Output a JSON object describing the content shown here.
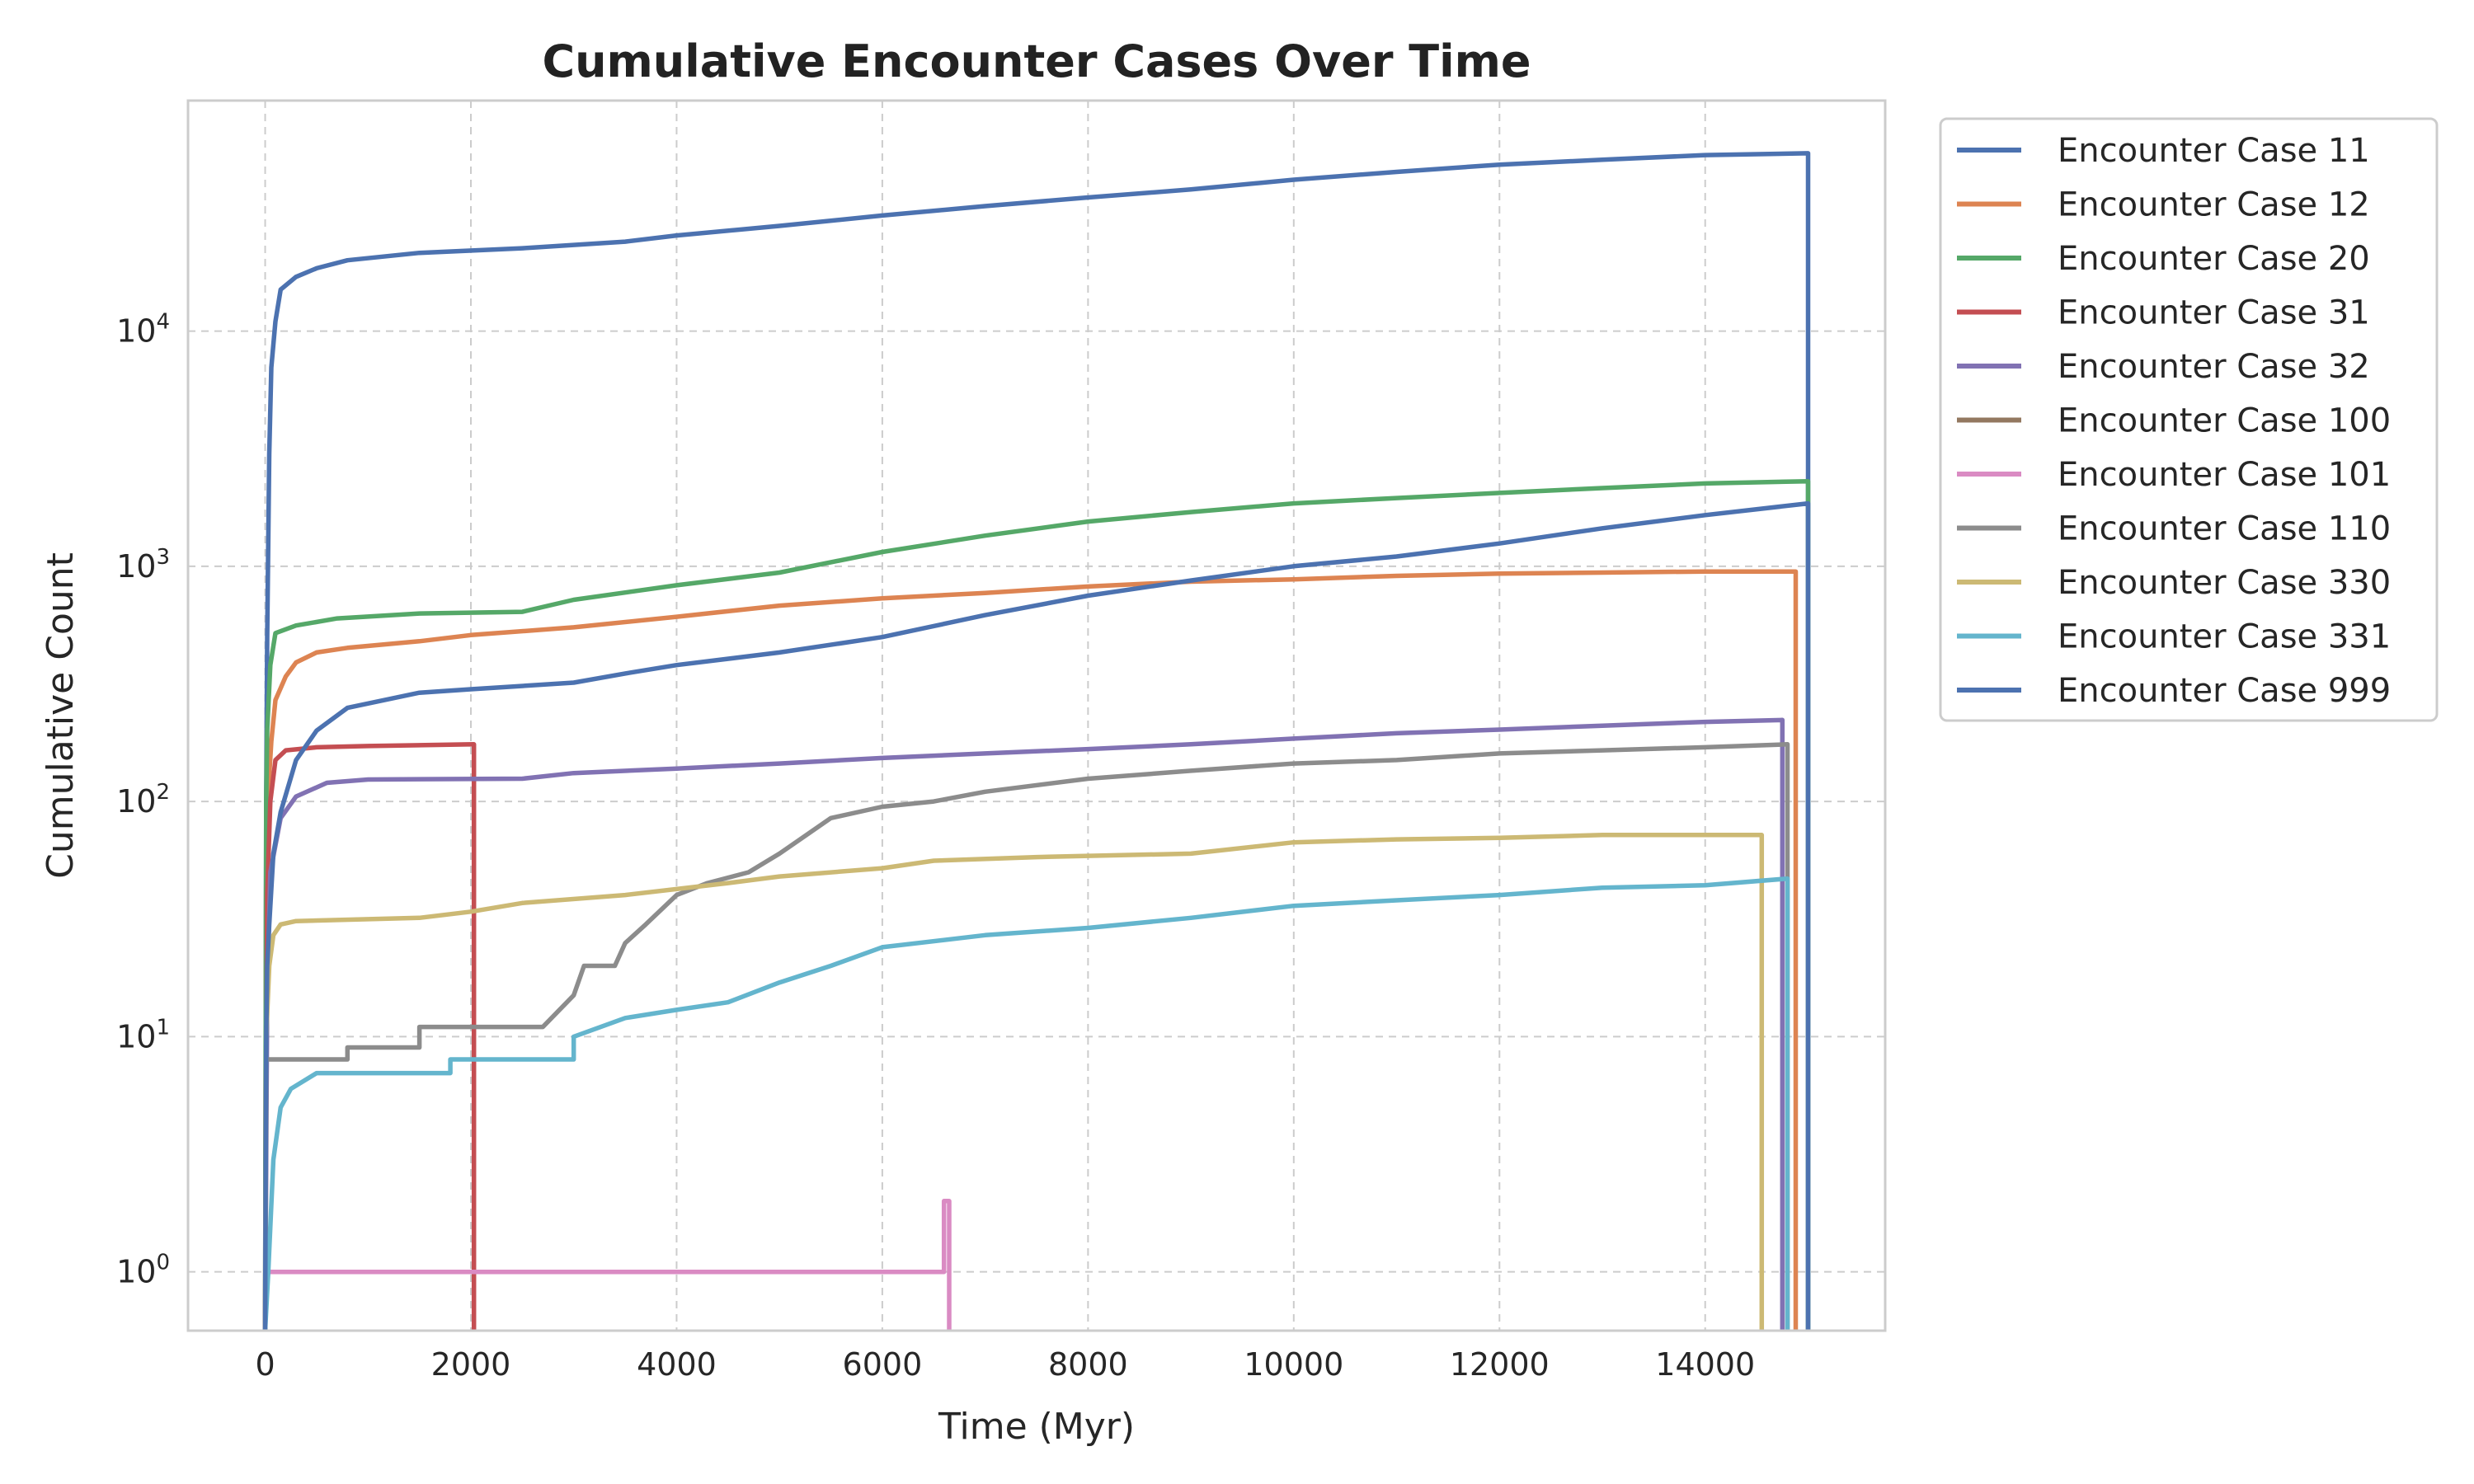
{
  "chart_data": {
    "type": "line",
    "title": "Cumulative Encounter Cases Over Time",
    "xlabel": "Time (Myr)",
    "ylabel": "Cumulative Count",
    "xlim": [
      -750,
      15750
    ],
    "ylim_log10": [
      -0.25,
      4.98
    ],
    "yscale": "log",
    "grid": true,
    "legend_position": "outside-top-right",
    "x_ticks": [
      {
        "value": 0,
        "label": "0"
      },
      {
        "value": 2000,
        "label": "2000"
      },
      {
        "value": 4000,
        "label": "4000"
      },
      {
        "value": 6000,
        "label": "6000"
      },
      {
        "value": 8000,
        "label": "8000"
      },
      {
        "value": 10000,
        "label": "10000"
      },
      {
        "value": 12000,
        "label": "12000"
      },
      {
        "value": 14000,
        "label": "14000"
      }
    ],
    "y_ticks": [
      {
        "exponent": 0,
        "base": "10",
        "sup": "0"
      },
      {
        "exponent": 1,
        "base": "10",
        "sup": "1"
      },
      {
        "exponent": 2,
        "base": "10",
        "sup": "2"
      },
      {
        "exponent": 3,
        "base": "10",
        "sup": "3"
      },
      {
        "exponent": 4,
        "base": "10",
        "sup": "4"
      }
    ],
    "series": [
      {
        "name": "Encounter Case 11",
        "color": "#4c72b0",
        "points": [
          [
            0,
            0.5
          ],
          [
            10,
            100
          ],
          [
            20,
            500
          ],
          [
            40,
            3000
          ],
          [
            60,
            7000
          ],
          [
            100,
            11000
          ],
          [
            150,
            15000
          ],
          [
            300,
            17000
          ],
          [
            500,
            18500
          ],
          [
            800,
            20000
          ],
          [
            1500,
            21500
          ],
          [
            2500,
            22500
          ],
          [
            3500,
            24000
          ],
          [
            4000,
            25500
          ],
          [
            5000,
            28000
          ],
          [
            6000,
            31000
          ],
          [
            7000,
            34000
          ],
          [
            8000,
            37000
          ],
          [
            9000,
            40000
          ],
          [
            10000,
            44000
          ],
          [
            11000,
            47500
          ],
          [
            12000,
            51000
          ],
          [
            13000,
            53500
          ],
          [
            14000,
            56000
          ],
          [
            15000,
            57000
          ],
          [
            15000,
            0.5
          ]
        ]
      },
      {
        "name": "Encounter Case 12",
        "color": "#dd8452",
        "points": [
          [
            0,
            0.5
          ],
          [
            10,
            50
          ],
          [
            30,
            110
          ],
          [
            60,
            180
          ],
          [
            100,
            270
          ],
          [
            200,
            340
          ],
          [
            300,
            390
          ],
          [
            500,
            430
          ],
          [
            800,
            450
          ],
          [
            1500,
            480
          ],
          [
            2000,
            510
          ],
          [
            3000,
            550
          ],
          [
            4000,
            610
          ],
          [
            5000,
            680
          ],
          [
            6000,
            730
          ],
          [
            7000,
            770
          ],
          [
            8000,
            820
          ],
          [
            9000,
            860
          ],
          [
            10000,
            880
          ],
          [
            11000,
            910
          ],
          [
            12000,
            930
          ],
          [
            13000,
            940
          ],
          [
            14000,
            950
          ],
          [
            14880,
            950
          ],
          [
            14880,
            0.5
          ]
        ]
      },
      {
        "name": "Encounter Case 20",
        "color": "#55a868",
        "points": [
          [
            0,
            0.5
          ],
          [
            10,
            100
          ],
          [
            20,
            200
          ],
          [
            50,
            380
          ],
          [
            100,
            520
          ],
          [
            300,
            560
          ],
          [
            700,
            600
          ],
          [
            1500,
            630
          ],
          [
            2500,
            640
          ],
          [
            3000,
            720
          ],
          [
            4000,
            830
          ],
          [
            5000,
            940
          ],
          [
            6000,
            1150
          ],
          [
            7000,
            1350
          ],
          [
            8000,
            1550
          ],
          [
            9000,
            1700
          ],
          [
            10000,
            1850
          ],
          [
            11000,
            1950
          ],
          [
            12000,
            2050
          ],
          [
            13000,
            2150
          ],
          [
            14000,
            2250
          ],
          [
            15000,
            2300
          ],
          [
            15000,
            0.5
          ]
        ]
      },
      {
        "name": "Encounter Case 31",
        "color": "#c44e52",
        "points": [
          [
            0,
            0.5
          ],
          [
            20,
            40
          ],
          [
            50,
            100
          ],
          [
            100,
            150
          ],
          [
            200,
            165
          ],
          [
            500,
            170
          ],
          [
            1000,
            172
          ],
          [
            2030,
            175
          ],
          [
            2030,
            0.5
          ]
        ]
      },
      {
        "name": "Encounter Case 32",
        "color": "#8172b3",
        "points": [
          [
            0,
            0.5
          ],
          [
            20,
            15
          ],
          [
            50,
            50
          ],
          [
            150,
            85
          ],
          [
            300,
            105
          ],
          [
            600,
            120
          ],
          [
            1000,
            124
          ],
          [
            2500,
            125
          ],
          [
            3000,
            132
          ],
          [
            4000,
            138
          ],
          [
            5000,
            145
          ],
          [
            6000,
            153
          ],
          [
            7000,
            160
          ],
          [
            8000,
            167
          ],
          [
            9000,
            175
          ],
          [
            10000,
            185
          ],
          [
            11000,
            195
          ],
          [
            12000,
            202
          ],
          [
            13000,
            210
          ],
          [
            14000,
            218
          ],
          [
            14750,
            222
          ],
          [
            14750,
            0.5
          ]
        ]
      },
      {
        "name": "Encounter Case 100",
        "color": "#937860",
        "points": []
      },
      {
        "name": "Encounter Case 101",
        "color": "#da8bc3",
        "points": [
          [
            0,
            0.5
          ],
          [
            10,
            1
          ],
          [
            6600,
            1
          ],
          [
            6600,
            2
          ],
          [
            6650,
            2
          ],
          [
            6650,
            0.5
          ]
        ]
      },
      {
        "name": "Encounter Case 110",
        "color": "#8c8c8c",
        "points": [
          [
            0,
            0.5
          ],
          [
            10,
            8
          ],
          [
            800,
            8
          ],
          [
            800,
            9
          ],
          [
            1500,
            9
          ],
          [
            1500,
            11
          ],
          [
            2700,
            11
          ],
          [
            3000,
            15
          ],
          [
            3100,
            20
          ],
          [
            3400,
            20
          ],
          [
            3500,
            25
          ],
          [
            3700,
            30
          ],
          [
            4000,
            40
          ],
          [
            4300,
            45
          ],
          [
            4700,
            50
          ],
          [
            5000,
            60
          ],
          [
            5500,
            85
          ],
          [
            6000,
            95
          ],
          [
            6500,
            100
          ],
          [
            7000,
            110
          ],
          [
            8000,
            125
          ],
          [
            9000,
            135
          ],
          [
            10000,
            145
          ],
          [
            11000,
            150
          ],
          [
            12000,
            160
          ],
          [
            13000,
            165
          ],
          [
            14000,
            170
          ],
          [
            14800,
            175
          ],
          [
            14800,
            0.5
          ]
        ]
      },
      {
        "name": "Encounter Case 330",
        "color": "#ccb974",
        "points": [
          [
            0,
            0.5
          ],
          [
            10,
            10
          ],
          [
            40,
            20
          ],
          [
            80,
            27
          ],
          [
            150,
            30
          ],
          [
            300,
            31
          ],
          [
            1500,
            32
          ],
          [
            2000,
            34
          ],
          [
            2500,
            37
          ],
          [
            3500,
            40
          ],
          [
            4500,
            45
          ],
          [
            5000,
            48
          ],
          [
            6000,
            52
          ],
          [
            6500,
            56
          ],
          [
            7500,
            58
          ],
          [
            9000,
            60
          ],
          [
            10000,
            67
          ],
          [
            11000,
            69
          ],
          [
            12000,
            70
          ],
          [
            13000,
            72
          ],
          [
            14550,
            72
          ],
          [
            14550,
            0.5
          ]
        ]
      },
      {
        "name": "Encounter Case 331",
        "color": "#64b5cd",
        "points": [
          [
            0,
            0.5
          ],
          [
            30,
            1
          ],
          [
            80,
            3
          ],
          [
            150,
            5
          ],
          [
            250,
            6
          ],
          [
            500,
            7
          ],
          [
            1800,
            7
          ],
          [
            1800,
            8
          ],
          [
            3000,
            8
          ],
          [
            3000,
            10
          ],
          [
            3500,
            12
          ],
          [
            4000,
            13
          ],
          [
            4500,
            14
          ],
          [
            5000,
            17
          ],
          [
            5500,
            20
          ],
          [
            6000,
            24
          ],
          [
            7000,
            27
          ],
          [
            8000,
            29
          ],
          [
            9000,
            32
          ],
          [
            10000,
            36
          ],
          [
            11000,
            38
          ],
          [
            12000,
            40
          ],
          [
            13000,
            43
          ],
          [
            14000,
            44
          ],
          [
            14800,
            47
          ],
          [
            14800,
            0.5
          ]
        ]
      },
      {
        "name": "Encounter Case 999",
        "color": "#4c72b0",
        "points": [
          [
            0,
            0.5
          ],
          [
            10,
            10
          ],
          [
            20,
            20
          ],
          [
            40,
            30
          ],
          [
            80,
            60
          ],
          [
            150,
            90
          ],
          [
            300,
            150
          ],
          [
            500,
            200
          ],
          [
            800,
            250
          ],
          [
            1500,
            290
          ],
          [
            2000,
            300
          ],
          [
            3000,
            320
          ],
          [
            3500,
            350
          ],
          [
            4000,
            380
          ],
          [
            5000,
            430
          ],
          [
            6000,
            500
          ],
          [
            7000,
            620
          ],
          [
            8000,
            750
          ],
          [
            9000,
            870
          ],
          [
            10000,
            1000
          ],
          [
            11000,
            1100
          ],
          [
            12000,
            1250
          ],
          [
            13000,
            1450
          ],
          [
            14000,
            1650
          ],
          [
            15000,
            1850
          ],
          [
            15000,
            0.5
          ]
        ]
      }
    ]
  }
}
